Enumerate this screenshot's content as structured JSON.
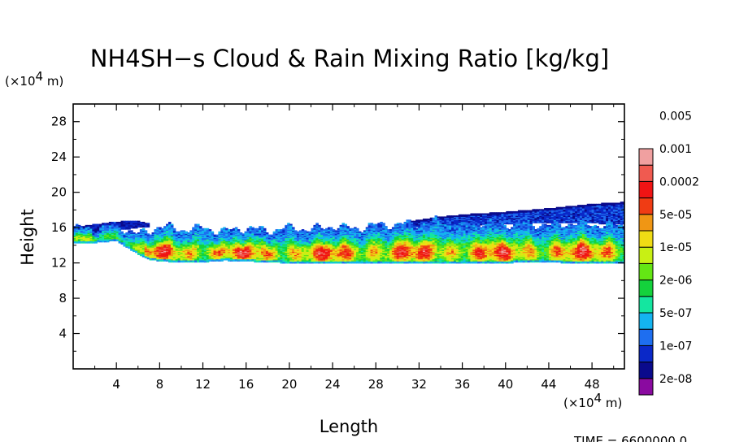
{
  "chart_data": {
    "type": "heatmap",
    "title": "NH4SH−s Cloud & Rain Mixing Ratio [kg/kg]",
    "xlabel": "Length",
    "ylabel": "Height",
    "x_unit_base": "×10",
    "x_unit_exp": "4",
    "x_unit_tail": " m)",
    "y_unit_base": "×10",
    "y_unit_exp": "4",
    "y_unit_tail": " m)",
    "xlim": [
      0,
      51
    ],
    "ylim": [
      0,
      30
    ],
    "xticks": [
      4,
      8,
      12,
      16,
      20,
      24,
      28,
      32,
      36,
      40,
      44,
      48
    ],
    "xtick_labels": [
      "4",
      "8",
      "12",
      "16",
      "20",
      "24",
      "28",
      "32",
      "36",
      "40",
      "44",
      "48"
    ],
    "yticks": [
      4,
      8,
      12,
      16,
      20,
      24,
      28
    ],
    "ytick_labels": [
      "4",
      "8",
      "12",
      "16",
      "20",
      "24",
      "28"
    ],
    "time_label": "TIME = 6600000.0",
    "colorbar": {
      "colors": [
        "#8a0aa0",
        "#0a0a8c",
        "#0a28c8",
        "#1e6ef0",
        "#14b4f0",
        "#14e6a0",
        "#14d23c",
        "#64e614",
        "#c8f014",
        "#f0dc14",
        "#f09614",
        "#f03c14",
        "#f01414",
        "#f05a50",
        "#f0a0a0"
      ],
      "labels": [
        "2e-08",
        "1e-07",
        "5e-07",
        "2e-06",
        "1e-05",
        "5e-05",
        "0.0002",
        "0.001",
        "0.005"
      ]
    },
    "field": {
      "description_free": true,
      "main_layer": {
        "x": [
          0,
          2,
          4,
          6,
          7,
          8,
          10,
          12,
          14,
          16,
          18,
          20,
          22,
          24,
          26,
          28,
          30,
          32,
          34,
          36,
          38,
          40,
          42,
          44,
          46,
          48,
          50,
          51
        ],
        "bottom": [
          14.2,
          14.3,
          14.5,
          13.0,
          12.4,
          12.2,
          12.1,
          12.1,
          12.3,
          12.2,
          12.1,
          12.0,
          12.0,
          12.0,
          12.0,
          12.0,
          12.0,
          12.0,
          12.0,
          12.0,
          12.0,
          12.0,
          12.1,
          12.1,
          12.0,
          12.0,
          12.0,
          12.0
        ],
        "top": [
          15.9,
          16.0,
          16.3,
          15.2,
          15.6,
          16.2,
          15.8,
          16.0,
          15.6,
          16.0,
          15.7,
          16.0,
          15.8,
          16.2,
          15.9,
          16.3,
          16.4,
          16.5,
          16.8,
          16.4,
          16.6,
          16.4,
          16.5,
          16.3,
          16.5,
          16.4,
          16.3,
          16.3
        ],
        "core_level": 10.5
      },
      "upper_layer": {
        "x": [
          30.5,
          33,
          36,
          40,
          44,
          48,
          51
        ],
        "bottom": [
          16.0,
          16.1,
          16.2,
          16.4,
          16.6,
          16.5,
          16.4
        ],
        "top": [
          16.6,
          17.1,
          17.5,
          17.8,
          18.2,
          18.7,
          18.9
        ],
        "level": 2.2
      },
      "left_anvil": {
        "x": [
          0,
          2,
          4,
          6,
          7
        ],
        "bottom": [
          15.6,
          15.5,
          15.7,
          16.0,
          16.1
        ],
        "top": [
          16.0,
          16.4,
          16.7,
          16.8,
          16.5
        ],
        "level": 1.5
      }
    }
  }
}
